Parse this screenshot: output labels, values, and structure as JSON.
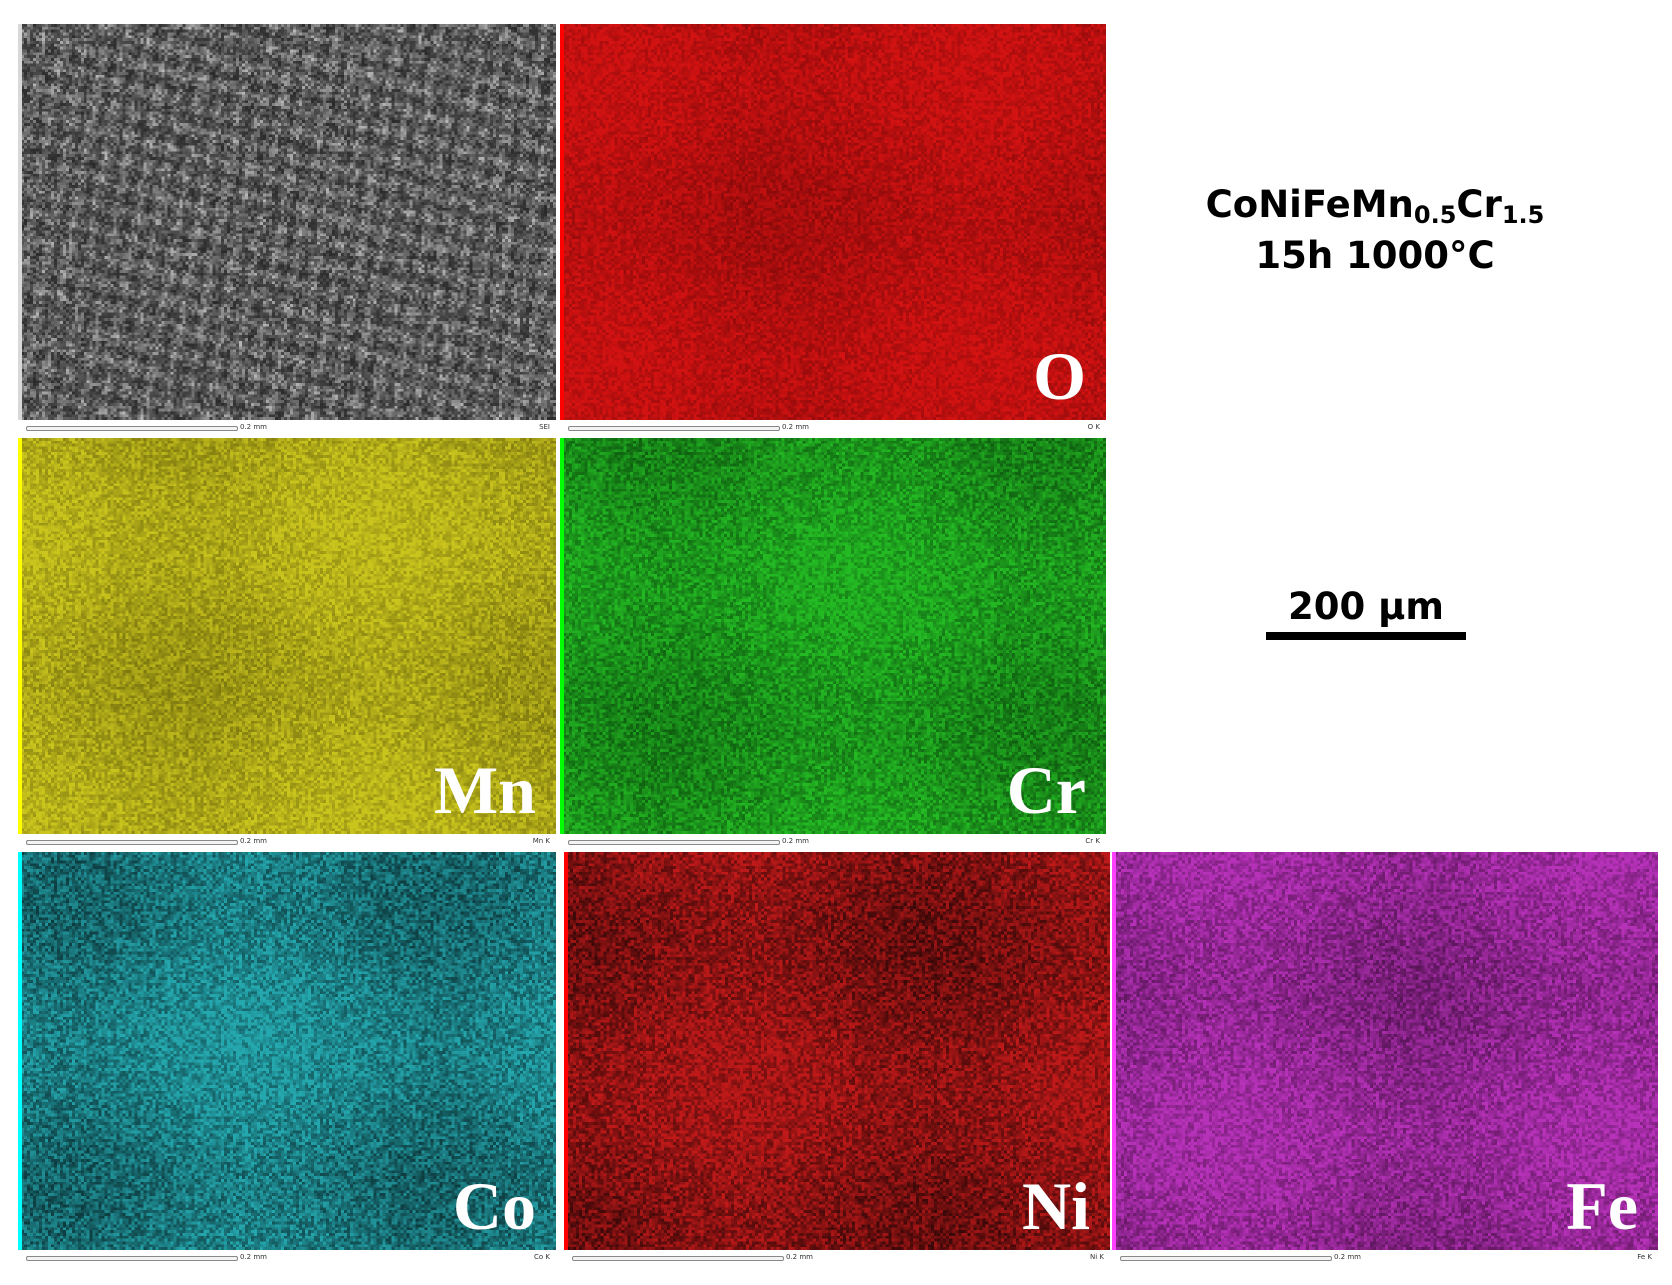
{
  "sample": {
    "composition_parts": [
      {
        "text": "CoNiFeMn",
        "sub": false
      },
      {
        "text": "0.5",
        "sub": true
      },
      {
        "text": "Cr",
        "sub": false
      },
      {
        "text": "1.5",
        "sub": true
      }
    ],
    "condition": "15h 1000°C"
  },
  "scale_bar": {
    "label": "200 µm"
  },
  "panels": [
    {
      "id": "sei",
      "element": "",
      "signal": "SEI",
      "scale": "0.2 mm",
      "color": "#9a9a9a",
      "base": "#2a2a2a",
      "edge": "#d8d8d8"
    },
    {
      "id": "o",
      "element": "O",
      "signal": "O K",
      "scale": "0.2 mm",
      "color": "#c21010",
      "base": "#8a0a0a",
      "edge": "#ff0000"
    },
    {
      "id": "mn",
      "element": "Mn",
      "signal": "Mn K",
      "scale": "0.2 mm",
      "color": "#b8b31a",
      "base": "#7d780f",
      "edge": "#ffff00"
    },
    {
      "id": "cr",
      "element": "Cr",
      "signal": "Cr K",
      "scale": "0.2 mm",
      "color": "#1fa51f",
      "base": "#0f5f10",
      "edge": "#00ff00"
    },
    {
      "id": "co",
      "element": "Co",
      "signal": "Co K",
      "scale": "0.2 mm",
      "color": "#1f8f95",
      "base": "#0d3c40",
      "edge": "#00ffff"
    },
    {
      "id": "ni",
      "element": "Ni",
      "signal": "Ni K",
      "scale": "0.2 mm",
      "color": "#a01515",
      "base": "#3a0808",
      "edge": "#ff0000"
    },
    {
      "id": "fe",
      "element": "Fe",
      "signal": "Fe K",
      "scale": "0.2 mm",
      "color": "#a12ba3",
      "base": "#5a1559",
      "edge": "#ff40ff"
    }
  ]
}
